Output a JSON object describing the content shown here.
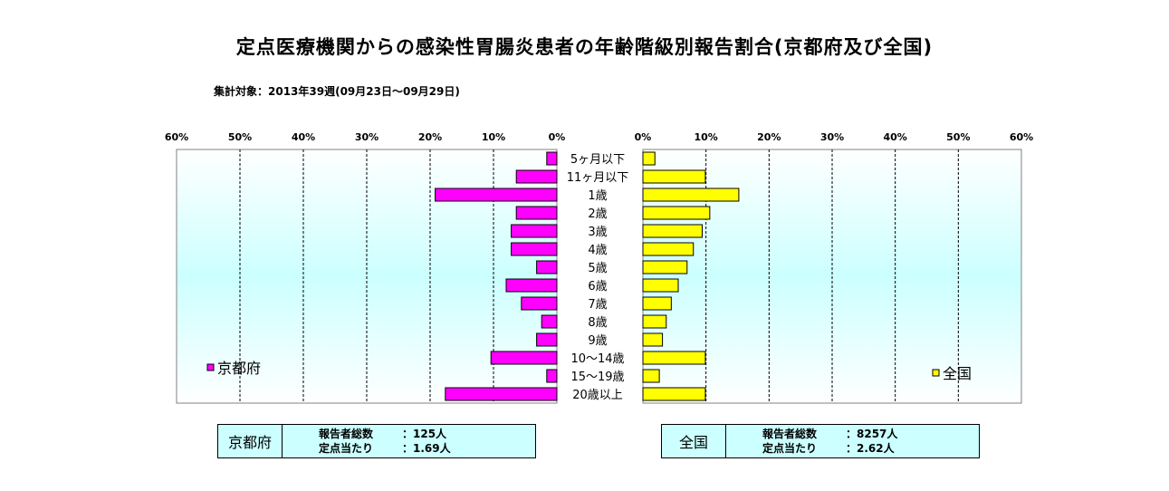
{
  "title": "定点医療機関からの感染性胃腸炎患者の年齢階級別報告割合(京都府及び全国)",
  "subtitle": "集計対象：2013年39週(09月23日～09月29日)",
  "colors": {
    "kyoto": "#ff00ff",
    "national": "#ffff00",
    "plot_bg_top": "#ffffff",
    "plot_bg_mid": "#ccffff"
  },
  "chart_data": {
    "type": "bar",
    "orientation": "horizontal-butterfly",
    "categories": [
      "5ヶ月以下",
      "11ヶ月以下",
      "1歳",
      "2歳",
      "3歳",
      "4歳",
      "5歳",
      "6歳",
      "7歳",
      "8歳",
      "9歳",
      "10～14歳",
      "15～19歳",
      "20歳以上"
    ],
    "series": [
      {
        "name": "京都府",
        "values": [
          1.6,
          6.4,
          19.2,
          6.4,
          7.2,
          7.2,
          3.2,
          8.0,
          5.6,
          2.4,
          3.2,
          10.4,
          1.6,
          17.6
        ]
      },
      {
        "name": "全国",
        "values": [
          1.9,
          9.9,
          15.2,
          10.6,
          9.4,
          8.0,
          7.0,
          5.6,
          4.5,
          3.7,
          3.1,
          9.9,
          2.6,
          9.9
        ]
      }
    ],
    "xlim": [
      0,
      60
    ],
    "ticks": [
      "0%",
      "10%",
      "20%",
      "30%",
      "40%",
      "50%",
      "60%"
    ],
    "grid": true,
    "legend": {
      "left": "京都府",
      "right": "全国"
    }
  },
  "info": {
    "kyoto": {
      "name": "京都府",
      "reporters_label": "報告者総数",
      "reporters_value": "：125人",
      "per_point_label": "定点当たり",
      "per_point_value": "：1.69人"
    },
    "national": {
      "name": "全国",
      "reporters_label": "報告者総数",
      "reporters_value": "：8257人",
      "per_point_label": "定点当たり",
      "per_point_value": "：2.62人"
    }
  }
}
